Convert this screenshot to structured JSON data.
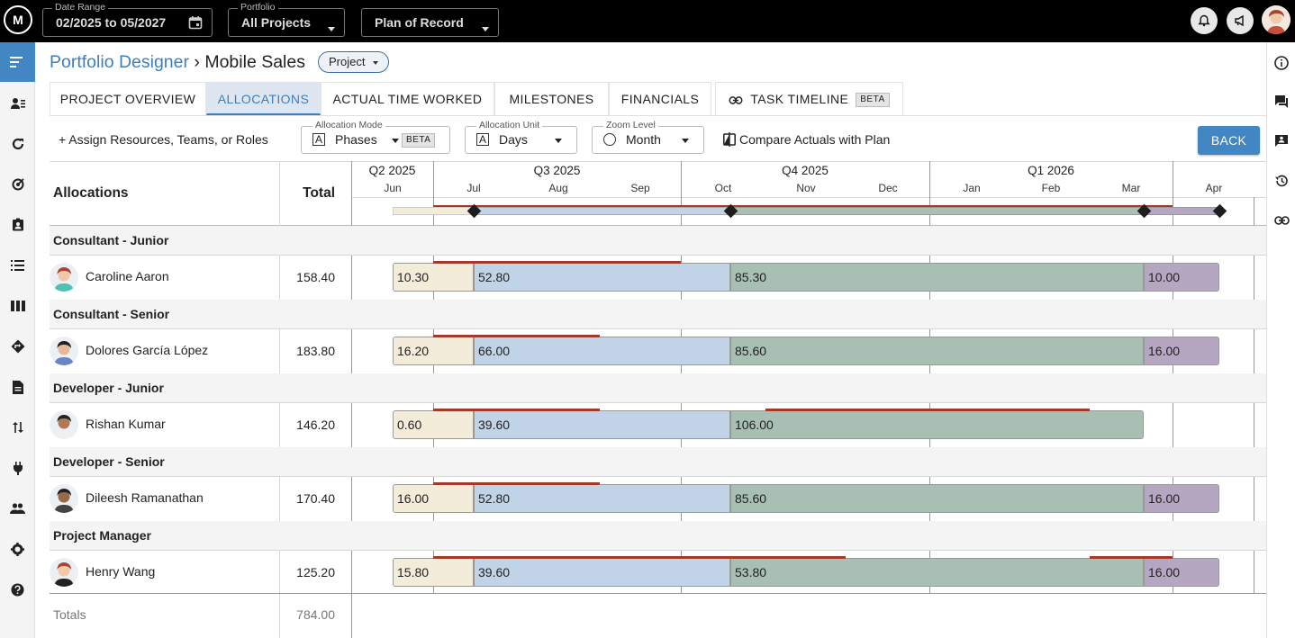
{
  "topbar": {
    "logo": "M",
    "date_range": {
      "label": "Date Range",
      "value": "02/2025 to 05/2027"
    },
    "portfolio": {
      "label": "Portfolio",
      "value": "All Projects"
    },
    "plan": {
      "value": "Plan of Record"
    }
  },
  "header": {
    "breadcrumb_root": "Portfolio Designer",
    "separator": "›",
    "project_name": "Mobile Sales",
    "type_pill": "Project"
  },
  "tabs": [
    {
      "label": "PROJECT OVERVIEW"
    },
    {
      "label": "ALLOCATIONS"
    },
    {
      "label": "ACTUAL TIME WORKED"
    },
    {
      "label": "MILESTONES"
    },
    {
      "label": "FINANCIALS"
    },
    {
      "label": "TASK TIMELINE",
      "badge": "BETA"
    }
  ],
  "toolbar": {
    "assign": "+ Assign Resources, Teams, or Roles",
    "allocation_mode": {
      "label": "Allocation Mode",
      "value": "Phases",
      "badge": "BETA"
    },
    "allocation_unit": {
      "label": "Allocation Unit",
      "value": "Days"
    },
    "zoom_level": {
      "label": "Zoom Level",
      "value": "Month"
    },
    "compare": "Compare Actuals with Plan",
    "back": "BACK"
  },
  "grid": {
    "col_allocations": "Allocations",
    "col_total": "Total",
    "quarters": [
      "Q2 2025",
      "Q3 2025",
      "Q4 2025",
      "Q1 2026"
    ],
    "months": [
      "Jun",
      "Jul",
      "Aug",
      "Sep",
      "Oct",
      "Nov",
      "Dec",
      "Jan",
      "Feb",
      "Mar",
      "Apr"
    ],
    "groups": [
      {
        "role": "Consultant - Junior",
        "person": "Caroline Aaron",
        "total": "158.40",
        "values": [
          "10.30",
          "52.80",
          "85.30",
          "10.00"
        ]
      },
      {
        "role": "Consultant - Senior",
        "person": "Dolores García López",
        "total": "183.80",
        "values": [
          "16.20",
          "66.00",
          "85.60",
          "16.00"
        ]
      },
      {
        "role": "Developer - Junior",
        "person": "Rishan Kumar",
        "total": "146.20",
        "values": [
          "0.60",
          "39.60",
          "106.00",
          ""
        ]
      },
      {
        "role": "Developer - Senior",
        "person": "Dileesh Ramanathan",
        "total": "170.40",
        "values": [
          "16.00",
          "52.80",
          "85.60",
          "16.00"
        ]
      },
      {
        "role": "Project Manager",
        "person": "Henry Wang",
        "total": "125.20",
        "values": [
          "15.80",
          "39.60",
          "53.80",
          "16.00"
        ]
      }
    ],
    "totals_label": "Totals",
    "totals_value": "784.00"
  },
  "colors": {
    "accent": "#4286c4",
    "phase1": "#f3ecd9",
    "phase2": "#c1d3e6",
    "phase3": "#a7c0b3",
    "phase4": "#b5a6c2",
    "overalloc": "#a23a2a"
  }
}
